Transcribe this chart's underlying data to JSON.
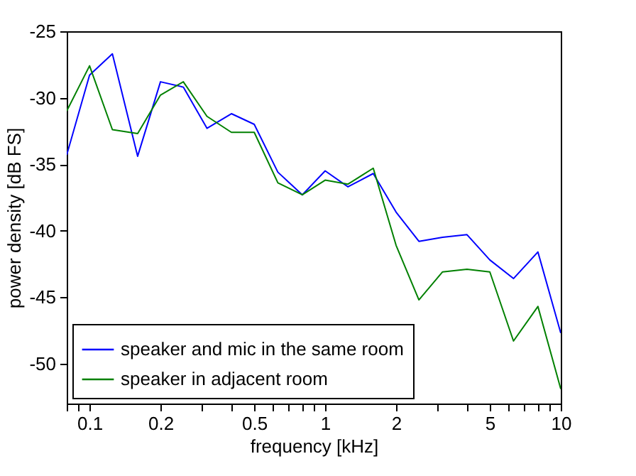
{
  "chart_data": {
    "type": "line",
    "xlabel": "frequency [kHz]",
    "ylabel": "power density [dB FS]",
    "x": [
      0.08,
      0.1,
      0.125,
      0.16,
      0.2,
      0.25,
      0.315,
      0.4,
      0.5,
      0.63,
      0.8,
      1,
      1.25,
      1.6,
      2,
      2.5,
      3.15,
      4,
      5,
      6.3,
      8,
      10
    ],
    "series": [
      {
        "name": "speaker and mic in the same room",
        "color": "#0000ff",
        "values": [
          -34.3,
          -28.3,
          -26.7,
          -34.4,
          -28.8,
          -29.2,
          -32.3,
          -31.2,
          -32.0,
          -35.6,
          -37.3,
          -35.5,
          -36.7,
          -35.7,
          -38.6,
          -40.8,
          -40.5,
          -40.3,
          -42.2,
          -43.6,
          -41.6,
          -47.7
        ]
      },
      {
        "name": "speaker in adjacent room",
        "color": "#008000",
        "values": [
          -31.0,
          -27.6,
          -32.4,
          -32.7,
          -29.8,
          -28.8,
          -31.4,
          -32.6,
          -32.6,
          -36.4,
          -37.3,
          -36.2,
          -36.5,
          -35.3,
          -41.1,
          -45.2,
          -43.1,
          -42.9,
          -43.1,
          -48.3,
          -45.7,
          -51.9
        ]
      }
    ],
    "log": "x",
    "xlim": [
      0.08,
      10
    ],
    "xticks": [
      {
        "value": 0.08,
        "label": null
      },
      {
        "value": 0.09,
        "label": null
      },
      0.1,
      0.2,
      {
        "value": 0.3,
        "label": null
      },
      {
        "value": 0.4,
        "label": null
      },
      0.5,
      {
        "value": 0.6,
        "label": null
      },
      {
        "value": 0.7,
        "label": null
      },
      {
        "value": 0.8,
        "label": null
      },
      {
        "value": 0.9,
        "label": null
      },
      1,
      2,
      {
        "value": 3,
        "label": null
      },
      {
        "value": 4,
        "label": null
      },
      5,
      {
        "value": 6,
        "label": null
      },
      {
        "value": 7,
        "label": null
      },
      {
        "value": 8,
        "label": null
      },
      {
        "value": 9,
        "label": null
      },
      10
    ],
    "ylim": [
      -53,
      -25
    ],
    "yticks": [
      -25,
      -30,
      -35,
      -40,
      -45,
      -50
    ],
    "grid": false,
    "legend": "bottom left",
    "marker": "none",
    "line_style": "solid"
  }
}
